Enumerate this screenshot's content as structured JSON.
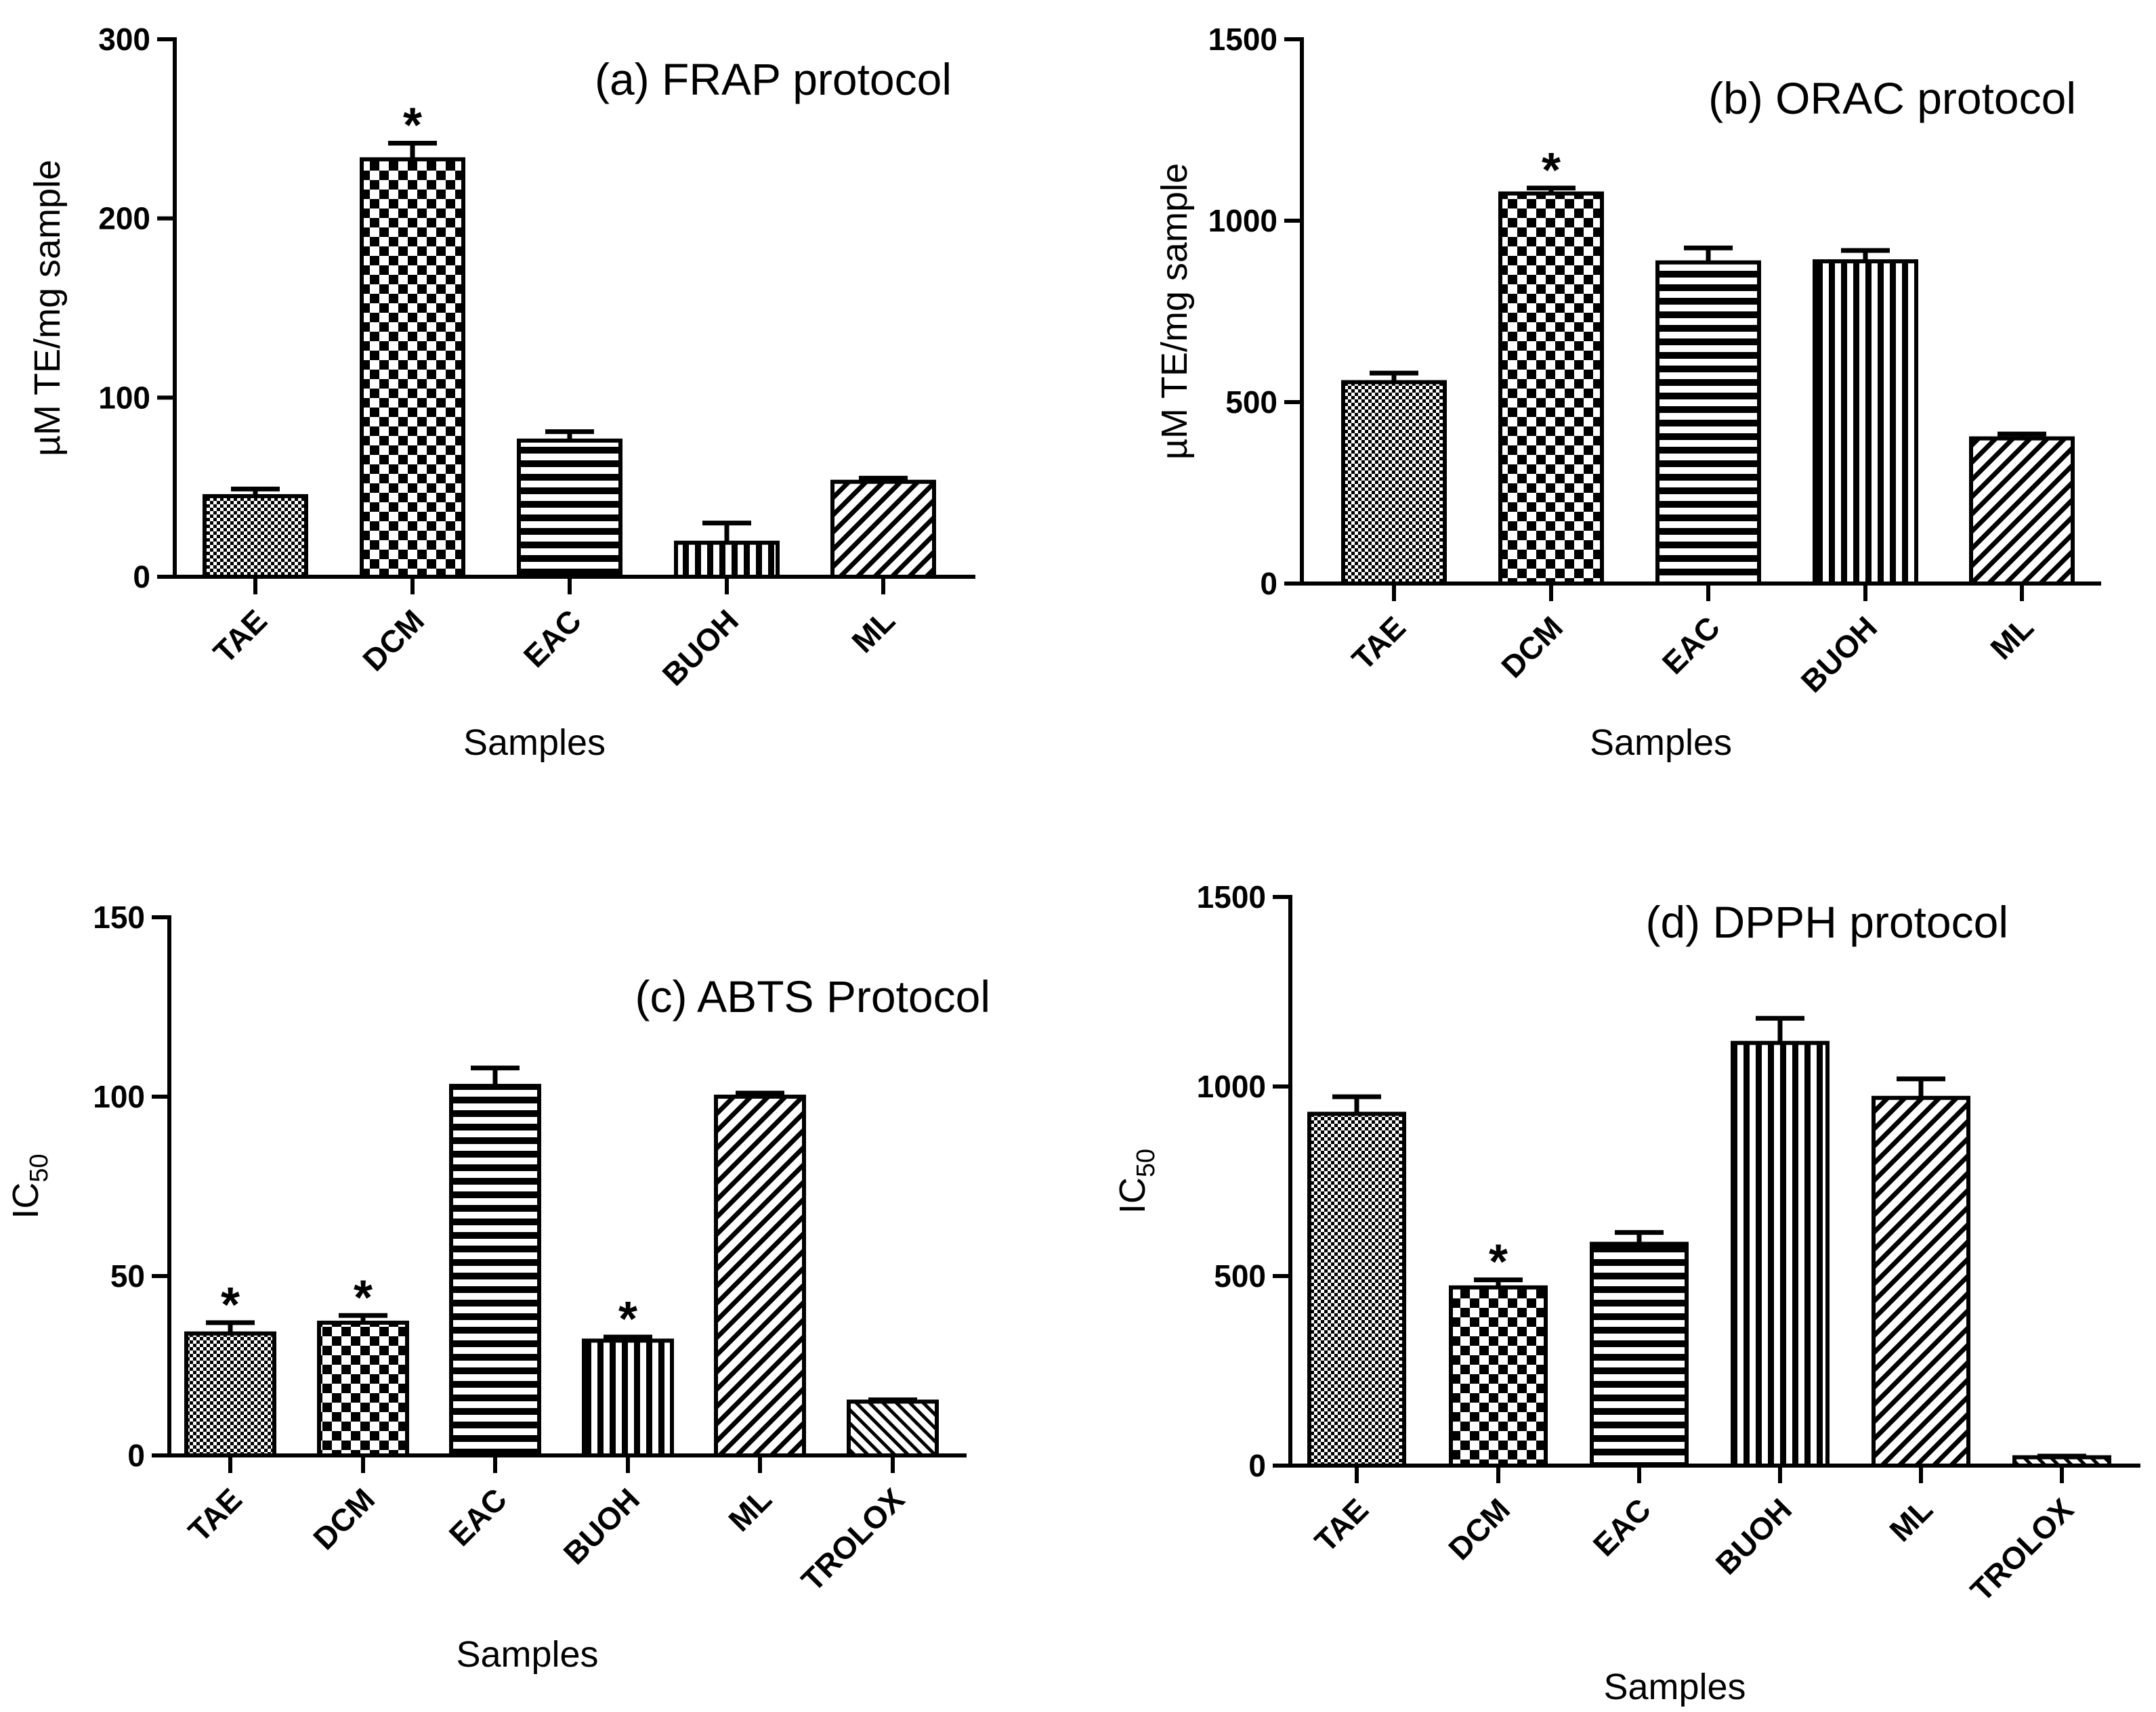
{
  "chart_data": [
    {
      "type": "bar",
      "title": "(a) FRAP protocol",
      "xlabel": "Samples",
      "ylabel": "µM TE/mg sample",
      "ylim": [
        0,
        300
      ],
      "yticks": [
        0,
        100,
        200,
        300
      ],
      "categories": [
        "TAE",
        "DCM",
        "EAC",
        "BUOH",
        "ML"
      ],
      "values": [
        45,
        233,
        76,
        19,
        53
      ],
      "errors": [
        4,
        9,
        5,
        11,
        2
      ],
      "significant": [
        false,
        true,
        false,
        false,
        false
      ],
      "significance_marker": "*",
      "patterns": [
        "dots",
        "checker",
        "hlines",
        "vlines",
        "diag"
      ]
    },
    {
      "type": "bar",
      "title": "(b) ORAC protocol",
      "xlabel": "Samples",
      "ylabel": "µM TE/mg sample",
      "ylim": [
        0,
        1500
      ],
      "yticks": [
        0,
        500,
        1000,
        1500
      ],
      "categories": [
        "TAE",
        "DCM",
        "EAC",
        "BUOH",
        "ML"
      ],
      "values": [
        555,
        1075,
        885,
        888,
        400
      ],
      "errors": [
        25,
        15,
        40,
        30,
        12
      ],
      "significant": [
        false,
        true,
        false,
        false,
        false
      ],
      "significance_marker": "*",
      "patterns": [
        "dots",
        "checker",
        "hlines",
        "vlines",
        "diag"
      ]
    },
    {
      "type": "bar",
      "title": "(c) ABTS Protocol",
      "xlabel": "Samples",
      "ylabel": "IC",
      "ylabel_sub": "50",
      "ylim": [
        0,
        150
      ],
      "yticks": [
        0,
        50,
        100,
        150
      ],
      "categories": [
        "TAE",
        "DCM",
        "EAC",
        "BUOH",
        "ML",
        "TROLOX"
      ],
      "values": [
        34,
        37,
        103,
        32,
        100,
        15
      ],
      "errors": [
        3,
        2,
        5,
        1,
        1,
        0.5
      ],
      "significant": [
        true,
        true,
        false,
        true,
        false,
        false
      ],
      "significance_marker": "*",
      "patterns": [
        "dots",
        "checker",
        "hlines",
        "vlines",
        "diag",
        "diag2"
      ]
    },
    {
      "type": "bar",
      "title": "(d) DPPH protocol",
      "xlabel": "Samples",
      "ylabel": "IC",
      "ylabel_sub": "50",
      "ylim": [
        0,
        1500
      ],
      "yticks": [
        0,
        500,
        1000,
        1500
      ],
      "categories": [
        "TAE",
        "DCM",
        "EAC",
        "BUOH",
        "ML",
        "TROLOX"
      ],
      "values": [
        928,
        470,
        585,
        1115,
        970,
        22
      ],
      "errors": [
        45,
        20,
        30,
        65,
        50,
        3
      ],
      "significant": [
        false,
        true,
        false,
        false,
        false,
        false
      ],
      "significance_marker": "*",
      "patterns": [
        "dots",
        "checker",
        "hlines",
        "vlines",
        "diag",
        "diag2"
      ]
    }
  ]
}
